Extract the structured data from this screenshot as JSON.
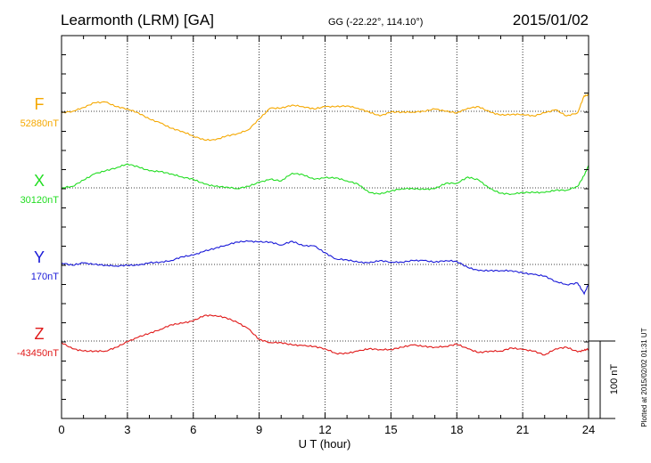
{
  "header": {
    "station": "Learmonth (LRM)  [GA]",
    "coords": "GG (-22.22°, 114.10°)",
    "date": "2015/01/02"
  },
  "footnote": "Plotted at 2015/02/02 01:31  UT",
  "scale": {
    "label": "100 nT",
    "value_nT": 100
  },
  "chart_data": {
    "type": "line",
    "title": "Learmonth (LRM)  [GA]",
    "xlabel": "U T (hour)",
    "xlim": [
      0,
      24
    ],
    "xticks": [
      0,
      3,
      6,
      9,
      12,
      15,
      18,
      21,
      24
    ],
    "grid": true,
    "series": [
      {
        "name": "F",
        "baseline_label": "52880nT",
        "baseline_nT": 52880,
        "color": "#f5a800",
        "points": [
          [
            0,
            -2
          ],
          [
            0.5,
            0
          ],
          [
            1,
            5
          ],
          [
            1.5,
            11
          ],
          [
            2,
            12
          ],
          [
            2.5,
            6
          ],
          [
            3,
            3
          ],
          [
            3.5,
            -2
          ],
          [
            4,
            -10
          ],
          [
            4.5,
            -15
          ],
          [
            5,
            -22
          ],
          [
            5.5,
            -26
          ],
          [
            6,
            -32
          ],
          [
            6.5,
            -37
          ],
          [
            7,
            -37
          ],
          [
            7.5,
            -32
          ],
          [
            8,
            -29
          ],
          [
            8.5,
            -24
          ],
          [
            9,
            -10
          ],
          [
            9.5,
            4
          ],
          [
            10,
            4
          ],
          [
            10.5,
            8
          ],
          [
            11,
            6
          ],
          [
            11.5,
            3
          ],
          [
            12,
            6
          ],
          [
            12.5,
            6
          ],
          [
            13,
            7
          ],
          [
            13.5,
            4
          ],
          [
            14,
            -1
          ],
          [
            14.5,
            -6
          ],
          [
            15,
            -1
          ],
          [
            15.5,
            -1
          ],
          [
            16,
            -1
          ],
          [
            16.5,
            0
          ],
          [
            17,
            3
          ],
          [
            17.5,
            0
          ],
          [
            18,
            -2
          ],
          [
            18.5,
            4
          ],
          [
            19,
            6
          ],
          [
            19.5,
            -1
          ],
          [
            20,
            -5
          ],
          [
            20.5,
            -4
          ],
          [
            21,
            -4
          ],
          [
            21.5,
            -6
          ],
          [
            22,
            -2
          ],
          [
            22.5,
            2
          ],
          [
            23,
            -6
          ],
          [
            23.5,
            -2
          ],
          [
            23.8,
            20
          ],
          [
            24,
            21
          ]
        ]
      },
      {
        "name": "X",
        "baseline_label": "30120nT",
        "baseline_nT": 30120,
        "color": "#22dd22",
        "points": [
          [
            0,
            0
          ],
          [
            0.5,
            2
          ],
          [
            1,
            10
          ],
          [
            1.5,
            18
          ],
          [
            2,
            22
          ],
          [
            2.5,
            26
          ],
          [
            3,
            31
          ],
          [
            3.5,
            27
          ],
          [
            4,
            22
          ],
          [
            4.5,
            21
          ],
          [
            5,
            18
          ],
          [
            5.5,
            14
          ],
          [
            6,
            11
          ],
          [
            6.5,
            5
          ],
          [
            7,
            2
          ],
          [
            7.5,
            1
          ],
          [
            8,
            -1
          ],
          [
            8.5,
            2
          ],
          [
            9,
            7
          ],
          [
            9.5,
            11
          ],
          [
            10,
            9
          ],
          [
            10.5,
            19
          ],
          [
            11,
            17
          ],
          [
            11.5,
            11
          ],
          [
            12,
            13
          ],
          [
            12.5,
            13
          ],
          [
            13,
            9
          ],
          [
            13.5,
            5
          ],
          [
            14,
            -6
          ],
          [
            14.5,
            -8
          ],
          [
            15,
            -4
          ],
          [
            15.5,
            -1
          ],
          [
            16,
            -1
          ],
          [
            16.5,
            -2
          ],
          [
            17,
            -1
          ],
          [
            17.5,
            6
          ],
          [
            18,
            6
          ],
          [
            18.5,
            14
          ],
          [
            19,
            10
          ],
          [
            19.5,
            -1
          ],
          [
            20,
            -7
          ],
          [
            20.5,
            -8
          ],
          [
            21,
            -6
          ],
          [
            21.5,
            -6
          ],
          [
            22,
            -6
          ],
          [
            22.5,
            -3
          ],
          [
            23,
            -3
          ],
          [
            23.5,
            2
          ],
          [
            23.8,
            16
          ],
          [
            24,
            29
          ]
        ]
      },
      {
        "name": "Y",
        "baseline_label": "170nT",
        "baseline_nT": 170,
        "color": "#1a1ad8",
        "points": [
          [
            0,
            2
          ],
          [
            0.5,
            -1
          ],
          [
            1,
            2
          ],
          [
            1.5,
            0
          ],
          [
            2,
            -1
          ],
          [
            2.5,
            -2
          ],
          [
            3,
            -1
          ],
          [
            3.5,
            -1
          ],
          [
            4,
            2
          ],
          [
            4.5,
            3
          ],
          [
            5,
            5
          ],
          [
            5.5,
            10
          ],
          [
            6,
            12
          ],
          [
            6.5,
            17
          ],
          [
            7,
            21
          ],
          [
            7.5,
            25
          ],
          [
            8,
            29
          ],
          [
            8.5,
            30
          ],
          [
            9,
            29
          ],
          [
            9.5,
            29
          ],
          [
            10,
            25
          ],
          [
            10.5,
            30
          ],
          [
            11,
            24
          ],
          [
            11.5,
            24
          ],
          [
            12,
            15
          ],
          [
            12.5,
            7
          ],
          [
            13,
            6
          ],
          [
            13.5,
            3
          ],
          [
            14,
            2
          ],
          [
            14.5,
            5
          ],
          [
            15,
            3
          ],
          [
            15.5,
            3
          ],
          [
            16,
            5
          ],
          [
            16.5,
            5
          ],
          [
            17,
            3
          ],
          [
            17.5,
            5
          ],
          [
            18,
            4
          ],
          [
            18.5,
            -4
          ],
          [
            19,
            -8
          ],
          [
            19.5,
            -8
          ],
          [
            20,
            -8
          ],
          [
            20.5,
            -8
          ],
          [
            21,
            -11
          ],
          [
            21.5,
            -13
          ],
          [
            22,
            -15
          ],
          [
            22.5,
            -22
          ],
          [
            23,
            -26
          ],
          [
            23.5,
            -24
          ],
          [
            23.8,
            -38
          ],
          [
            24,
            -25
          ]
        ]
      },
      {
        "name": "Z",
        "baseline_label": "-43450nT",
        "baseline_nT": -43450,
        "color": "#e01818",
        "points": [
          [
            0,
            -2
          ],
          [
            0.5,
            -10
          ],
          [
            1,
            -13
          ],
          [
            1.5,
            -13
          ],
          [
            2,
            -13
          ],
          [
            2.5,
            -8
          ],
          [
            3,
            -1
          ],
          [
            3.5,
            5
          ],
          [
            4,
            10
          ],
          [
            4.5,
            15
          ],
          [
            5,
            21
          ],
          [
            5.5,
            23
          ],
          [
            6,
            26
          ],
          [
            6.5,
            33
          ],
          [
            7,
            33
          ],
          [
            7.5,
            30
          ],
          [
            8,
            24
          ],
          [
            8.5,
            16
          ],
          [
            9,
            2
          ],
          [
            9.5,
            -2
          ],
          [
            10,
            -2
          ],
          [
            10.5,
            -5
          ],
          [
            11,
            -6
          ],
          [
            11.5,
            -7
          ],
          [
            12,
            -10
          ],
          [
            12.5,
            -16
          ],
          [
            13,
            -16
          ],
          [
            13.5,
            -13
          ],
          [
            14,
            -10
          ],
          [
            14.5,
            -11
          ],
          [
            15,
            -11
          ],
          [
            15.5,
            -8
          ],
          [
            16,
            -5
          ],
          [
            16.5,
            -7
          ],
          [
            17,
            -8
          ],
          [
            17.5,
            -7
          ],
          [
            18,
            -4
          ],
          [
            18.5,
            -10
          ],
          [
            19,
            -15
          ],
          [
            19.5,
            -13
          ],
          [
            20,
            -13
          ],
          [
            20.5,
            -9
          ],
          [
            21,
            -11
          ],
          [
            21.5,
            -13
          ],
          [
            22,
            -18
          ],
          [
            22.5,
            -10
          ],
          [
            23,
            -8
          ],
          [
            23.5,
            -14
          ],
          [
            23.8,
            -12
          ],
          [
            24,
            -10
          ]
        ]
      }
    ]
  }
}
